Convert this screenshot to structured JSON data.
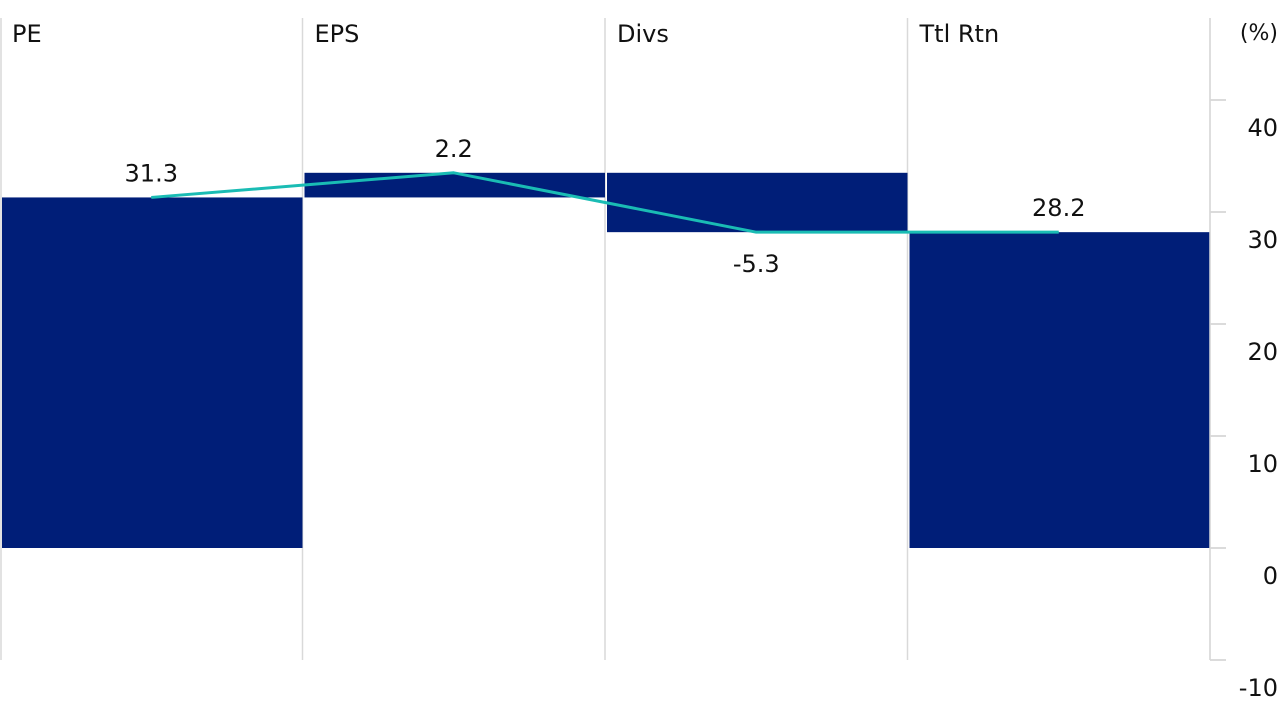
{
  "chart_data": {
    "type": "bar",
    "subtype": "waterfall",
    "title": "",
    "xlabel": "",
    "ylabel": "",
    "unit_label": "(%)",
    "categories": [
      "PE",
      "EPS",
      "Divs",
      "Ttl Rtn"
    ],
    "values": [
      31.3,
      2.2,
      -5.3,
      28.2
    ],
    "value_labels": [
      "31.3",
      "2.2",
      "-5.3",
      "28.2"
    ],
    "ylim": [
      -10,
      40
    ],
    "yticks": [
      -10,
      0,
      10,
      20,
      30,
      40
    ],
    "ytick_labels": [
      "-10",
      "0",
      "10",
      "20",
      "30",
      "40"
    ],
    "y_axis_position": "right",
    "bar_color": "#001e78",
    "line_color": "#1abcb4",
    "grid": false
  }
}
